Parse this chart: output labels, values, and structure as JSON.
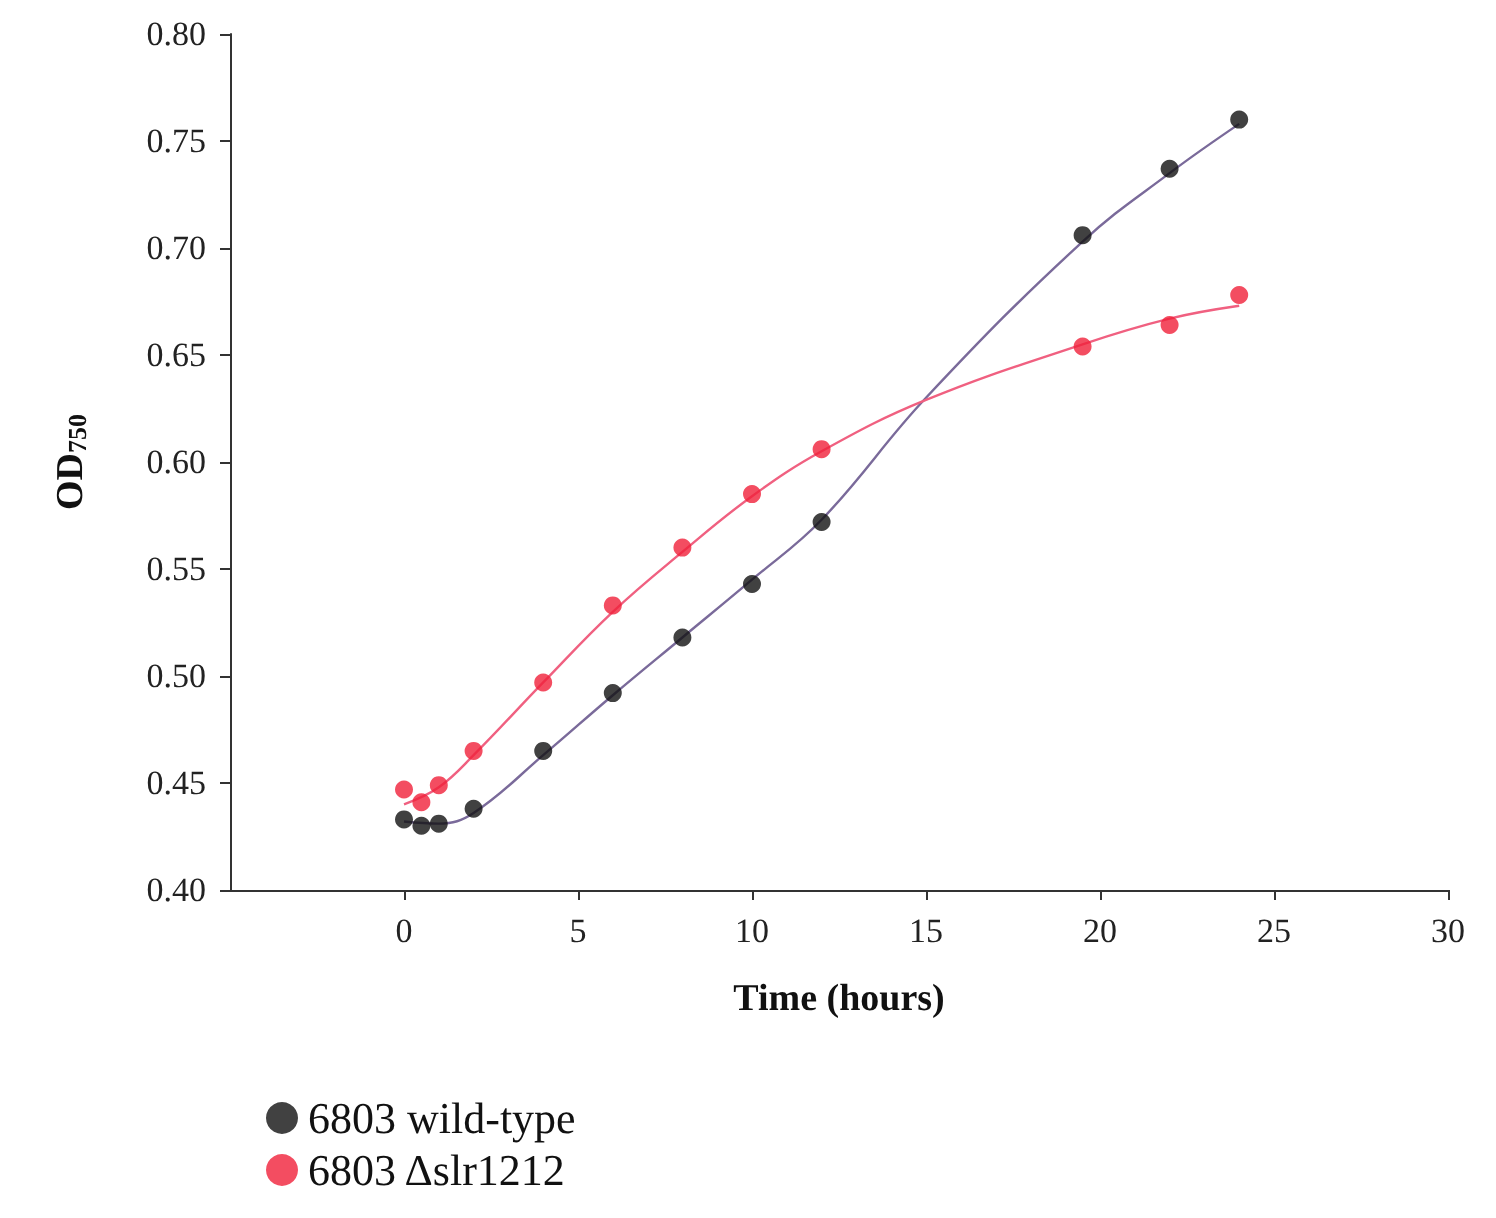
{
  "chart_data": {
    "type": "scatter",
    "xlabel": "Time (hours)",
    "ylabel": "OD$_{750}$",
    "xlim": [
      -5,
      30
    ],
    "xticks": [
      0,
      5,
      10,
      15,
      20,
      25,
      30
    ],
    "ylim": [
      0.4,
      0.8
    ],
    "yticks": [
      {
        "value": 0.4,
        "label": "0.40"
      },
      {
        "value": 0.45,
        "label": "0.45"
      },
      {
        "value": 0.5,
        "label": "0.50"
      },
      {
        "value": 0.55,
        "label": "0.55"
      },
      {
        "value": 0.6,
        "label": "0.60"
      },
      {
        "value": 0.65,
        "label": "0.65"
      },
      {
        "value": 0.7,
        "label": "0.70"
      },
      {
        "value": 0.75,
        "label": "0.75"
      },
      {
        "value": 0.8,
        "label": "0.80"
      }
    ],
    "grid": false,
    "legend": "bottom left",
    "marker": "circle",
    "series": [
      {
        "name": "6803 wild-type",
        "color": "#111111",
        "x": [
          0,
          0.5,
          1,
          2,
          4,
          6,
          8,
          10,
          12,
          19.5,
          22,
          24
        ],
        "values": [
          0.433,
          0.43,
          0.431,
          0.438,
          0.465,
          0.492,
          0.518,
          0.543,
          0.572,
          0.706,
          0.737,
          0.76
        ]
      },
      {
        "name": "6803 Δslr1212",
        "color": "#f0203a",
        "x": [
          0,
          0.5,
          1,
          2,
          4,
          6,
          8,
          10,
          12,
          19.5,
          22,
          24
        ],
        "values": [
          0.447,
          0.441,
          0.449,
          0.465,
          0.497,
          0.533,
          0.56,
          0.585,
          0.606,
          0.654,
          0.664,
          0.678
        ]
      },
      {
        "type": "line",
        "marker": "none",
        "color": "#7a6a9a",
        "x": [
          0,
          1,
          2,
          4,
          6,
          8,
          10,
          12,
          15,
          19.5,
          22,
          24
        ],
        "values": [
          0.432,
          0.431,
          0.436,
          0.463,
          0.491,
          0.518,
          0.545,
          0.573,
          0.63,
          0.703,
          0.735,
          0.758
        ]
      },
      {
        "type": "line",
        "marker": "none",
        "color": "#f06080",
        "x": [
          0,
          1,
          2,
          4,
          6,
          8,
          10,
          12,
          15,
          19.5,
          22,
          24
        ],
        "values": [
          0.44,
          0.448,
          0.463,
          0.497,
          0.53,
          0.558,
          0.584,
          0.605,
          0.629,
          0.655,
          0.667,
          0.673
        ]
      }
    ]
  }
}
